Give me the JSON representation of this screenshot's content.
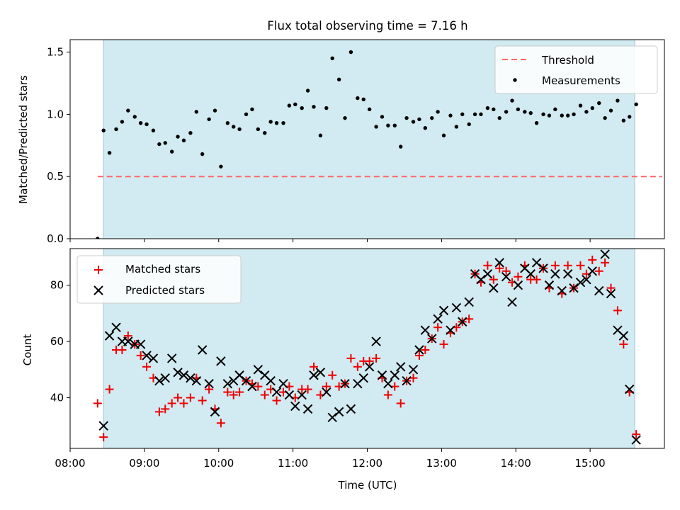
{
  "title": "Flux total observing time = 7.16 h",
  "colors": {
    "observing_span": "#add8e6",
    "threshold": "#ff6666",
    "measurement": "#000000",
    "matched": "#ee0000",
    "predicted": "#000000"
  },
  "chart_data": [
    {
      "type": "scatter",
      "panel": "top",
      "ylabel": "Matched/Predicted stars",
      "xlabel": "",
      "xlim": [
        8.0,
        16.0
      ],
      "ylim": [
        0.0,
        1.6
      ],
      "yticks": [
        0.0,
        0.5,
        1.0,
        1.5
      ],
      "ytick_labels": [
        "0.0",
        "0.5",
        "1.0",
        "1.5"
      ],
      "observing_span": [
        8.45,
        15.6
      ],
      "threshold": {
        "name": "Threshold",
        "value": 0.5,
        "x_range": [
          8.37,
          15.97
        ]
      },
      "legend": {
        "position": "top-right",
        "entries": [
          "Threshold",
          "Measurements"
        ]
      },
      "series": [
        {
          "name": "Measurements",
          "x": [
            8.37,
            8.45,
            8.53,
            8.62,
            8.7,
            8.78,
            8.87,
            8.95,
            9.03,
            9.12,
            9.2,
            9.28,
            9.37,
            9.45,
            9.53,
            9.62,
            9.7,
            9.78,
            9.87,
            9.95,
            10.03,
            10.12,
            10.2,
            10.28,
            10.37,
            10.45,
            10.53,
            10.62,
            10.7,
            10.78,
            10.87,
            10.95,
            11.03,
            11.12,
            11.2,
            11.28,
            11.37,
            11.45,
            11.53,
            11.62,
            11.7,
            11.78,
            11.87,
            11.95,
            12.03,
            12.12,
            12.2,
            12.28,
            12.37,
            12.45,
            12.53,
            12.62,
            12.7,
            12.78,
            12.87,
            12.95,
            13.03,
            13.12,
            13.2,
            13.28,
            13.37,
            13.45,
            13.53,
            13.62,
            13.7,
            13.78,
            13.87,
            13.95,
            14.03,
            14.12,
            14.2,
            14.28,
            14.37,
            14.45,
            14.53,
            14.62,
            14.7,
            14.78,
            14.87,
            14.95,
            15.03,
            15.12,
            15.2,
            15.28,
            15.37,
            15.45,
            15.53,
            15.62
          ],
          "y": [
            0.0,
            0.87,
            0.69,
            0.88,
            0.94,
            1.03,
            0.98,
            0.93,
            0.92,
            0.87,
            0.76,
            0.77,
            0.7,
            0.82,
            0.79,
            0.85,
            1.02,
            0.68,
            0.96,
            1.03,
            0.58,
            0.93,
            0.9,
            0.88,
            1.0,
            1.04,
            0.88,
            0.85,
            0.94,
            0.93,
            0.93,
            1.07,
            1.08,
            1.05,
            1.19,
            1.06,
            0.83,
            1.05,
            1.45,
            1.28,
            0.97,
            1.5,
            1.13,
            1.12,
            1.04,
            0.9,
            0.98,
            0.91,
            0.91,
            0.74,
            0.97,
            0.94,
            0.96,
            0.89,
            0.97,
            1.02,
            0.83,
            0.99,
            0.9,
            1.0,
            0.92,
            1.0,
            1.0,
            1.05,
            1.04,
            0.97,
            1.02,
            1.11,
            1.04,
            1.02,
            1.01,
            0.93,
            1.0,
            0.99,
            1.04,
            0.99,
            0.99,
            1.0,
            1.07,
            1.02,
            1.05,
            1.09,
            0.97,
            1.03,
            1.11,
            0.95,
            0.98,
            1.08
          ]
        }
      ]
    },
    {
      "type": "scatter",
      "panel": "bottom",
      "ylabel": "Count",
      "xlabel": "Time (UTC)",
      "xlim": [
        8.0,
        16.0
      ],
      "ylim": [
        22,
        93
      ],
      "yticks": [
        40,
        60,
        80
      ],
      "ytick_labels": [
        "40",
        "60",
        "80"
      ],
      "xticks": [
        8,
        9,
        10,
        11,
        12,
        13,
        14,
        15
      ],
      "xtick_labels": [
        "08:00",
        "09:00",
        "10:00",
        "11:00",
        "12:00",
        "13:00",
        "14:00",
        "15:00"
      ],
      "observing_span": [
        8.45,
        15.6
      ],
      "legend": {
        "position": "top-left",
        "entries": [
          "Matched stars",
          "Predicted stars"
        ]
      },
      "series": [
        {
          "name": "Matched stars",
          "marker": "plus",
          "x": [
            8.37,
            8.45,
            8.53,
            8.62,
            8.7,
            8.78,
            8.87,
            8.95,
            9.03,
            9.12,
            9.2,
            9.28,
            9.37,
            9.45,
            9.53,
            9.62,
            9.7,
            9.78,
            9.87,
            9.95,
            10.03,
            10.12,
            10.2,
            10.28,
            10.37,
            10.45,
            10.53,
            10.62,
            10.7,
            10.78,
            10.87,
            10.95,
            11.03,
            11.12,
            11.2,
            11.28,
            11.37,
            11.45,
            11.53,
            11.62,
            11.7,
            11.78,
            11.87,
            11.95,
            12.03,
            12.12,
            12.2,
            12.28,
            12.37,
            12.45,
            12.53,
            12.62,
            12.7,
            12.78,
            12.87,
            12.95,
            13.03,
            13.12,
            13.2,
            13.28,
            13.37,
            13.45,
            13.53,
            13.62,
            13.7,
            13.78,
            13.87,
            13.95,
            14.03,
            14.12,
            14.2,
            14.28,
            14.37,
            14.45,
            14.53,
            14.62,
            14.7,
            14.78,
            14.87,
            14.95,
            15.03,
            15.12,
            15.2,
            15.28,
            15.37,
            15.45,
            15.53,
            15.62
          ],
          "y": [
            38,
            26,
            43,
            57,
            57,
            62,
            59,
            55,
            51,
            47,
            35,
            36,
            38,
            40,
            38,
            40,
            47,
            39,
            43,
            36,
            31,
            42,
            41,
            42,
            46,
            45,
            44,
            41,
            43,
            39,
            42,
            44,
            40,
            43,
            43,
            51,
            41,
            44,
            48,
            44,
            45,
            54,
            51,
            53,
            53,
            54,
            47,
            41,
            44,
            38,
            46,
            47,
            55,
            57,
            61,
            65,
            59,
            63,
            65,
            67,
            68,
            84,
            81,
            87,
            82,
            86,
            85,
            81,
            83,
            87,
            82,
            82,
            86,
            79,
            87,
            77,
            87,
            79,
            87,
            84,
            89,
            85,
            88,
            79,
            71,
            59,
            42,
            27
          ]
        },
        {
          "name": "Predicted stars",
          "marker": "x",
          "x": [
            8.37,
            8.45,
            8.53,
            8.62,
            8.7,
            8.78,
            8.87,
            8.95,
            9.03,
            9.12,
            9.2,
            9.28,
            9.37,
            9.45,
            9.53,
            9.62,
            9.7,
            9.78,
            9.87,
            9.95,
            10.03,
            10.12,
            10.2,
            10.28,
            10.37,
            10.45,
            10.53,
            10.62,
            10.7,
            10.78,
            10.87,
            10.95,
            11.03,
            11.12,
            11.2,
            11.28,
            11.37,
            11.45,
            11.53,
            11.62,
            11.7,
            11.78,
            11.87,
            11.95,
            12.03,
            12.12,
            12.2,
            12.28,
            12.37,
            12.45,
            12.53,
            12.62,
            12.7,
            12.78,
            12.87,
            12.95,
            13.03,
            13.12,
            13.2,
            13.28,
            13.37,
            13.45,
            13.53,
            13.62,
            13.7,
            13.78,
            13.87,
            13.95,
            14.03,
            14.12,
            14.2,
            14.28,
            14.37,
            14.45,
            14.53,
            14.62,
            14.7,
            14.78,
            14.87,
            14.95,
            15.03,
            15.12,
            15.2,
            15.28,
            15.37,
            15.45,
            15.53,
            15.62
          ],
          "y": [
            null,
            30,
            62,
            65,
            60,
            60,
            59,
            59,
            55,
            54,
            46,
            47,
            54,
            49,
            48,
            47,
            46,
            57,
            45,
            35,
            53,
            45,
            46,
            48,
            46,
            44,
            50,
            48,
            46,
            42,
            45,
            41,
            37,
            41,
            36,
            48,
            49,
            42,
            33,
            35,
            45,
            36,
            45,
            47,
            51,
            60,
            48,
            45,
            48,
            51,
            46,
            50,
            57,
            64,
            61,
            68,
            71,
            64,
            72,
            67,
            74,
            84,
            82,
            84,
            79,
            88,
            83,
            74,
            80,
            86,
            84,
            88,
            86,
            80,
            84,
            78,
            84,
            79,
            81,
            82,
            85,
            78,
            91,
            77,
            64,
            62,
            43,
            25
          ]
        }
      ]
    }
  ]
}
